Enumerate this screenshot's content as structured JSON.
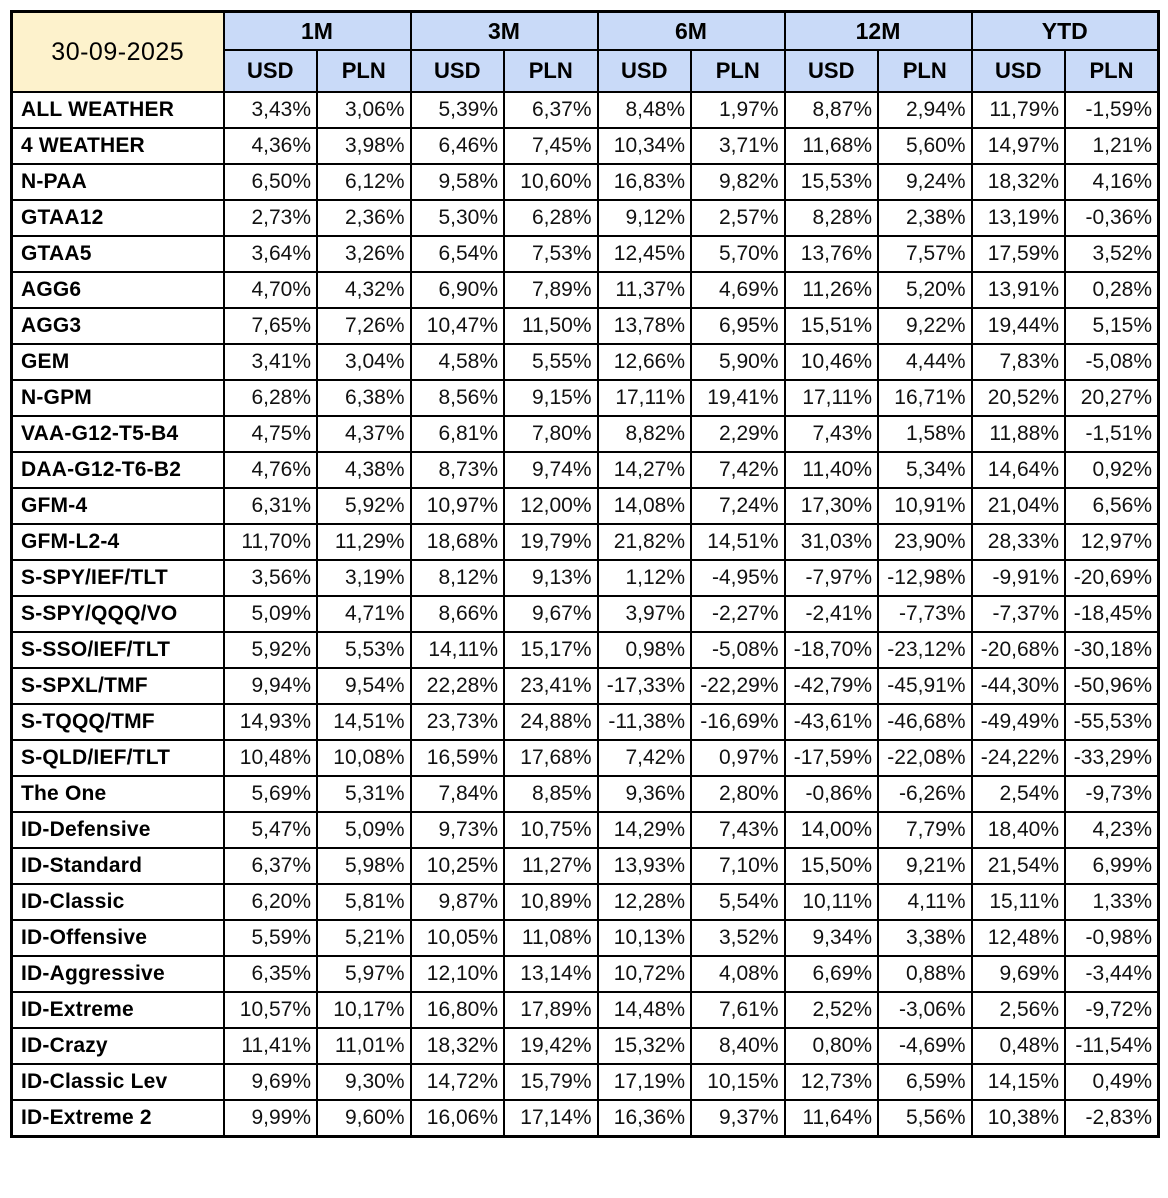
{
  "colors": {
    "date_bg": "#FDF2CC",
    "header_bg": "#C9DAF8",
    "border": "#000000"
  },
  "chart_data": {
    "type": "table",
    "date_label": "30-09-2025",
    "column_groups": [
      "1M",
      "3M",
      "6M",
      "12M",
      "YTD"
    ],
    "sub_columns": [
      "USD",
      "PLN"
    ],
    "value_unit": "percent, comma decimal separator",
    "rows": [
      {
        "label": "ALL WEATHER",
        "values": [
          "3,43%",
          "3,06%",
          "5,39%",
          "6,37%",
          "8,48%",
          "1,97%",
          "8,87%",
          "2,94%",
          "11,79%",
          "-1,59%"
        ]
      },
      {
        "label": "4 WEATHER",
        "values": [
          "4,36%",
          "3,98%",
          "6,46%",
          "7,45%",
          "10,34%",
          "3,71%",
          "11,68%",
          "5,60%",
          "14,97%",
          "1,21%"
        ]
      },
      {
        "label": "N-PAA",
        "values": [
          "6,50%",
          "6,12%",
          "9,58%",
          "10,60%",
          "16,83%",
          "9,82%",
          "15,53%",
          "9,24%",
          "18,32%",
          "4,16%"
        ]
      },
      {
        "label": "GTAA12",
        "values": [
          "2,73%",
          "2,36%",
          "5,30%",
          "6,28%",
          "9,12%",
          "2,57%",
          "8,28%",
          "2,38%",
          "13,19%",
          "-0,36%"
        ]
      },
      {
        "label": "GTAA5",
        "values": [
          "3,64%",
          "3,26%",
          "6,54%",
          "7,53%",
          "12,45%",
          "5,70%",
          "13,76%",
          "7,57%",
          "17,59%",
          "3,52%"
        ]
      },
      {
        "label": "AGG6",
        "values": [
          "4,70%",
          "4,32%",
          "6,90%",
          "7,89%",
          "11,37%",
          "4,69%",
          "11,26%",
          "5,20%",
          "13,91%",
          "0,28%"
        ]
      },
      {
        "label": "AGG3",
        "values": [
          "7,65%",
          "7,26%",
          "10,47%",
          "11,50%",
          "13,78%",
          "6,95%",
          "15,51%",
          "9,22%",
          "19,44%",
          "5,15%"
        ]
      },
      {
        "label": "GEM",
        "values": [
          "3,41%",
          "3,04%",
          "4,58%",
          "5,55%",
          "12,66%",
          "5,90%",
          "10,46%",
          "4,44%",
          "7,83%",
          "-5,08%"
        ]
      },
      {
        "label": "N-GPM",
        "values": [
          "6,28%",
          "6,38%",
          "8,56%",
          "9,15%",
          "17,11%",
          "19,41%",
          "17,11%",
          "16,71%",
          "20,52%",
          "20,27%"
        ]
      },
      {
        "label": "VAA-G12-T5-B4",
        "values": [
          "4,75%",
          "4,37%",
          "6,81%",
          "7,80%",
          "8,82%",
          "2,29%",
          "7,43%",
          "1,58%",
          "11,88%",
          "-1,51%"
        ]
      },
      {
        "label": "DAA-G12-T6-B2",
        "values": [
          "4,76%",
          "4,38%",
          "8,73%",
          "9,74%",
          "14,27%",
          "7,42%",
          "11,40%",
          "5,34%",
          "14,64%",
          "0,92%"
        ]
      },
      {
        "label": "GFM-4",
        "values": [
          "6,31%",
          "5,92%",
          "10,97%",
          "12,00%",
          "14,08%",
          "7,24%",
          "17,30%",
          "10,91%",
          "21,04%",
          "6,56%"
        ]
      },
      {
        "label": "GFM-L2-4",
        "values": [
          "11,70%",
          "11,29%",
          "18,68%",
          "19,79%",
          "21,82%",
          "14,51%",
          "31,03%",
          "23,90%",
          "28,33%",
          "12,97%"
        ]
      },
      {
        "label": "S-SPY/IEF/TLT",
        "values": [
          "3,56%",
          "3,19%",
          "8,12%",
          "9,13%",
          "1,12%",
          "-4,95%",
          "-7,97%",
          "-12,98%",
          "-9,91%",
          "-20,69%"
        ]
      },
      {
        "label": "S-SPY/QQQ/VO",
        "values": [
          "5,09%",
          "4,71%",
          "8,66%",
          "9,67%",
          "3,97%",
          "-2,27%",
          "-2,41%",
          "-7,73%",
          "-7,37%",
          "-18,45%"
        ]
      },
      {
        "label": "S-SSO/IEF/TLT",
        "values": [
          "5,92%",
          "5,53%",
          "14,11%",
          "15,17%",
          "0,98%",
          "-5,08%",
          "-18,70%",
          "-23,12%",
          "-20,68%",
          "-30,18%"
        ]
      },
      {
        "label": "S-SPXL/TMF",
        "values": [
          "9,94%",
          "9,54%",
          "22,28%",
          "23,41%",
          "-17,33%",
          "-22,29%",
          "-42,79%",
          "-45,91%",
          "-44,30%",
          "-50,96%"
        ]
      },
      {
        "label": "S-TQQQ/TMF",
        "values": [
          "14,93%",
          "14,51%",
          "23,73%",
          "24,88%",
          "-11,38%",
          "-16,69%",
          "-43,61%",
          "-46,68%",
          "-49,49%",
          "-55,53%"
        ]
      },
      {
        "label": "S-QLD/IEF/TLT",
        "values": [
          "10,48%",
          "10,08%",
          "16,59%",
          "17,68%",
          "7,42%",
          "0,97%",
          "-17,59%",
          "-22,08%",
          "-24,22%",
          "-33,29%"
        ]
      },
      {
        "label": "The One",
        "values": [
          "5,69%",
          "5,31%",
          "7,84%",
          "8,85%",
          "9,36%",
          "2,80%",
          "-0,86%",
          "-6,26%",
          "2,54%",
          "-9,73%"
        ]
      },
      {
        "label": "ID-Defensive",
        "values": [
          "5,47%",
          "5,09%",
          "9,73%",
          "10,75%",
          "14,29%",
          "7,43%",
          "14,00%",
          "7,79%",
          "18,40%",
          "4,23%"
        ]
      },
      {
        "label": "ID-Standard",
        "values": [
          "6,37%",
          "5,98%",
          "10,25%",
          "11,27%",
          "13,93%",
          "7,10%",
          "15,50%",
          "9,21%",
          "21,54%",
          "6,99%"
        ]
      },
      {
        "label": "ID-Classic",
        "values": [
          "6,20%",
          "5,81%",
          "9,87%",
          "10,89%",
          "12,28%",
          "5,54%",
          "10,11%",
          "4,11%",
          "15,11%",
          "1,33%"
        ]
      },
      {
        "label": "ID-Offensive",
        "values": [
          "5,59%",
          "5,21%",
          "10,05%",
          "11,08%",
          "10,13%",
          "3,52%",
          "9,34%",
          "3,38%",
          "12,48%",
          "-0,98%"
        ]
      },
      {
        "label": "ID-Aggressive",
        "values": [
          "6,35%",
          "5,97%",
          "12,10%",
          "13,14%",
          "10,72%",
          "4,08%",
          "6,69%",
          "0,88%",
          "9,69%",
          "-3,44%"
        ]
      },
      {
        "label": "ID-Extreme",
        "values": [
          "10,57%",
          "10,17%",
          "16,80%",
          "17,89%",
          "14,48%",
          "7,61%",
          "2,52%",
          "-3,06%",
          "2,56%",
          "-9,72%"
        ]
      },
      {
        "label": "ID-Crazy",
        "values": [
          "11,41%",
          "11,01%",
          "18,32%",
          "19,42%",
          "15,32%",
          "8,40%",
          "0,80%",
          "-4,69%",
          "0,48%",
          "-11,54%"
        ]
      },
      {
        "label": "ID-Classic Lev",
        "values": [
          "9,69%",
          "9,30%",
          "14,72%",
          "15,79%",
          "17,19%",
          "10,15%",
          "12,73%",
          "6,59%",
          "14,15%",
          "0,49%"
        ]
      },
      {
        "label": "ID-Extreme 2",
        "values": [
          "9,99%",
          "9,60%",
          "16,06%",
          "17,14%",
          "16,36%",
          "9,37%",
          "11,64%",
          "5,56%",
          "10,38%",
          "-2,83%"
        ]
      }
    ]
  }
}
